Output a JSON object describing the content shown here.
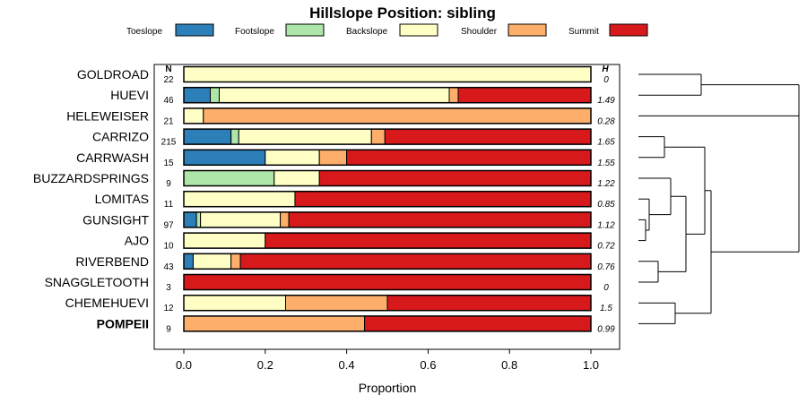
{
  "chart_data": {
    "type": "bar",
    "stacked": true,
    "orientation": "horizontal",
    "title": "Hillslope Position: sibling",
    "xlabel": "Proportion",
    "ylabel": "",
    "xlim": [
      0,
      1
    ],
    "x_ticks": [
      "0.0",
      "0.2",
      "0.4",
      "0.6",
      "0.8",
      "1.0"
    ],
    "n_header": "N",
    "h_header": "H",
    "series": [
      {
        "name": "Toeslope",
        "color": "#2c7fb8"
      },
      {
        "name": "Footslope",
        "color": "#ade6a8"
      },
      {
        "name": "Backslope",
        "color": "#ffffc5"
      },
      {
        "name": "Shoulder",
        "color": "#fdae6b"
      },
      {
        "name": "Summit",
        "color": "#d7191c"
      }
    ],
    "categories": [
      {
        "label": "GOLDROAD",
        "n": "22",
        "h": "0",
        "bold": false,
        "values": [
          0,
          0,
          1.0,
          0,
          0
        ]
      },
      {
        "label": "HUEVI",
        "n": "46",
        "h": "1.49",
        "bold": false,
        "values": [
          0.065,
          0.022,
          0.565,
          0.022,
          0.326
        ]
      },
      {
        "label": "HELEWEISER",
        "n": "21",
        "h": "0.28",
        "bold": false,
        "values": [
          0,
          0,
          0.048,
          0.952,
          0
        ]
      },
      {
        "label": "CARRIZO",
        "n": "215",
        "h": "1.65",
        "bold": false,
        "values": [
          0.116,
          0.019,
          0.326,
          0.033,
          0.506
        ]
      },
      {
        "label": "CARRWASH",
        "n": "15",
        "h": "1.55",
        "bold": false,
        "values": [
          0.2,
          0,
          0.133,
          0.067,
          0.6
        ]
      },
      {
        "label": "BUZZARDSPRINGS",
        "n": "9",
        "h": "1.22",
        "bold": false,
        "values": [
          0,
          0.222,
          0.111,
          0,
          0.667
        ]
      },
      {
        "label": "LOMITAS",
        "n": "11",
        "h": "0.85",
        "bold": false,
        "values": [
          0,
          0,
          0.273,
          0,
          0.727
        ]
      },
      {
        "label": "GUNSIGHT",
        "n": "97",
        "h": "1.12",
        "bold": false,
        "values": [
          0.031,
          0.01,
          0.196,
          0.021,
          0.742
        ]
      },
      {
        "label": "AJO",
        "n": "10",
        "h": "0.72",
        "bold": false,
        "values": [
          0,
          0,
          0.2,
          0,
          0.8
        ]
      },
      {
        "label": "RIVERBEND",
        "n": "43",
        "h": "0.76",
        "bold": false,
        "values": [
          0.023,
          0,
          0.093,
          0.023,
          0.861
        ]
      },
      {
        "label": "SNAGGLETOOTH",
        "n": "3",
        "h": "0",
        "bold": false,
        "values": [
          0,
          0,
          0,
          0,
          1.0
        ]
      },
      {
        "label": "CHEMEHUEVI",
        "n": "12",
        "h": "1.5",
        "bold": false,
        "values": [
          0,
          0,
          0.25,
          0.25,
          0.5
        ]
      },
      {
        "label": "POMPEII",
        "n": "9",
        "h": "0.99",
        "bold": true,
        "values": [
          0,
          0,
          0,
          0.444,
          0.556
        ]
      }
    ],
    "dendrogram": [
      {
        "left": "GOLDROAD",
        "right": "HUEVI",
        "height": 0.62
      },
      {
        "left": "GOLDROAD+HUEVI",
        "right": "HELEWEISER",
        "height": 1.0
      },
      {
        "left": "CARRIZO",
        "right": "CARRWASH",
        "height": 0.18
      },
      {
        "left": "LOMITAS",
        "right": "GUNSIGHT",
        "height": 0.12
      },
      {
        "left": "GUNSIGHT",
        "right": "AJO",
        "height": 0.06
      },
      {
        "left": "BUZZARDSPRINGS",
        "right": "LOMITAS+GUNSIGHT+AJO",
        "height": 0.32
      },
      {
        "left": "RIVERBEND",
        "right": "SNAGGLETOOTH",
        "height": 0.16
      },
      {
        "left": "BUZZARDSPRINGS...",
        "right": "RIVERBEND+SNAGGLETOOTH",
        "height": 0.44
      },
      {
        "left": "CHEMEHUEVI",
        "right": "POMPEII",
        "height": 0.36
      },
      {
        "left": "CARRIZO+CARRWASH",
        "right": "BUZZARDSPRINGS...",
        "height": 0.5
      },
      {
        "left": "...",
        "right": "CHEMEHUEVI+POMPEII",
        "height": 0.56
      },
      {
        "left": "root",
        "right": "root",
        "height": 1.2
      }
    ]
  }
}
